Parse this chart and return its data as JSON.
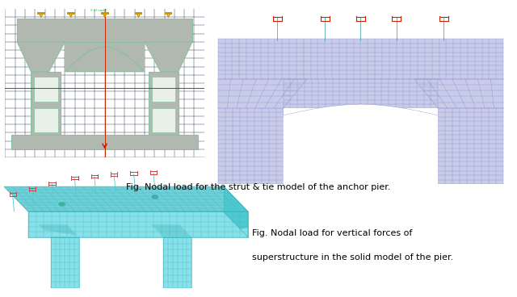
{
  "background_color": "#ffffff",
  "fig_width": 6.4,
  "fig_height": 3.68,
  "caption1": "Fig. Nodal load for the strut & tie model of the anchor pier.",
  "caption2_line1": "Fig. Nodal load for vertical forces of",
  "caption2_line2": "superstructure in the solid model of the pier.",
  "caption_fontsize": 8,
  "caption_fontstyle": "normal",
  "panel_bg_dark": "#050a14",
  "dark_grid_color": "#1a2a3a",
  "pier_gray": "#b0b8b0",
  "pier_light": "#d0d8d0",
  "pier_outline": "#88c0a0",
  "void_color": "#e8f0e8",
  "mesh_fill": "#c8cce8",
  "mesh_grid": "#8888cc",
  "load_arrow_yellow": "#cc9900",
  "load_arrow_red": "#cc2200",
  "load_arrow_pink": "#cc4444",
  "axis_red": "#cc2200",
  "green_text": "#00cc44",
  "cyan_fill": "#88e0e8",
  "cyan_dark": "#50c8d0",
  "cyan_grid": "#40b8c0",
  "cyan_side": "#70d0d8"
}
